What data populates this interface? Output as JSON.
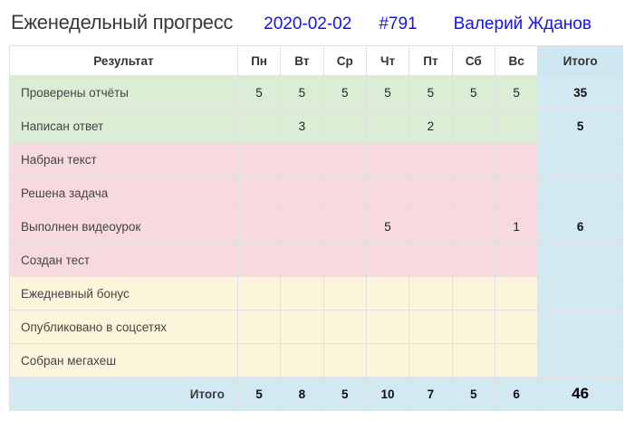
{
  "header": {
    "title": "Еженедельный прогресс",
    "date": "2020-02-02",
    "number": "#791",
    "user": "Валерий Жданов"
  },
  "colors": {
    "accent_blue_text": "#1512ee",
    "row_green": "#dcedd5",
    "row_pink": "#f7dade",
    "row_cream": "#fcf4db",
    "total_blue": "#d2e9f2"
  },
  "table": {
    "result_header": "Результат",
    "day_headers": [
      "Пн",
      "Вт",
      "Ср",
      "Чт",
      "Пт",
      "Сб",
      "Вс"
    ],
    "total_header": "Итого",
    "rows": [
      {
        "label": "Проверены отчёты",
        "values": [
          "5",
          "5",
          "5",
          "5",
          "5",
          "5",
          "5"
        ],
        "total": "35"
      },
      {
        "label": "Написан ответ",
        "values": [
          "",
          "3",
          "",
          "",
          "2",
          "",
          ""
        ],
        "total": "5"
      },
      {
        "label": "Набран текст",
        "values": [
          "",
          "",
          "",
          "",
          "",
          "",
          ""
        ],
        "total": ""
      },
      {
        "label": "Решена задача",
        "values": [
          "",
          "",
          "",
          "",
          "",
          "",
          ""
        ],
        "total": ""
      },
      {
        "label": "Выполнен видеоурок",
        "values": [
          "",
          "",
          "",
          "5",
          "",
          "",
          "1"
        ],
        "total": "6"
      },
      {
        "label": "Создан тест",
        "values": [
          "",
          "",
          "",
          "",
          "",
          "",
          ""
        ],
        "total": ""
      },
      {
        "label": "Ежедневный бонус",
        "values": [
          "",
          "",
          "",
          "",
          "",
          "",
          ""
        ],
        "total": ""
      },
      {
        "label": "Опубликовано в соцсетях",
        "values": [
          "",
          "",
          "",
          "",
          "",
          "",
          ""
        ],
        "total": ""
      },
      {
        "label": "Собран мегахеш",
        "values": [
          "",
          "",
          "",
          "",
          "",
          "",
          ""
        ],
        "total": ""
      }
    ],
    "footer": {
      "label": "Итого",
      "values": [
        "5",
        "8",
        "5",
        "10",
        "7",
        "5",
        "6"
      ],
      "grand_total": "46"
    }
  }
}
